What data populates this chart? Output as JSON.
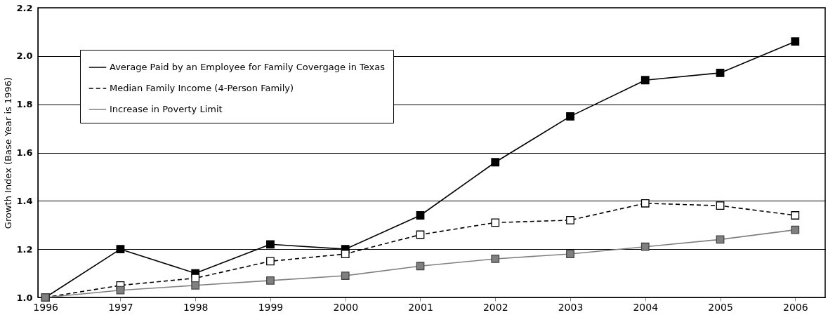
{
  "chart_data": {
    "type": "line",
    "ylabel": "Growth Index (Base Year is 1996)",
    "categories": [
      "1996",
      "1997",
      "1998",
      "1999",
      "2000",
      "2001",
      "2002",
      "2003",
      "2004",
      "2005",
      "2006"
    ],
    "series": [
      {
        "name": "Average Paid by an Employee for Family Covergage in Texas",
        "color": "#000000",
        "line_style": "solid",
        "values": [
          1.0,
          1.2,
          1.1,
          1.22,
          1.2,
          1.34,
          1.56,
          1.75,
          1.9,
          1.93,
          2.06
        ]
      },
      {
        "name": "Median Family Income (4-Person Family)",
        "color": "#000000",
        "line_style": "dashed",
        "values": [
          1.0,
          1.05,
          1.08,
          1.15,
          1.18,
          1.26,
          1.31,
          1.32,
          1.39,
          1.38,
          1.34
        ]
      },
      {
        "name": "Increase in Poverty Limit",
        "color": "#808080",
        "line_style": "solid",
        "values": [
          1.0,
          1.03,
          1.05,
          1.07,
          1.09,
          1.13,
          1.16,
          1.18,
          1.21,
          1.24,
          1.28
        ]
      }
    ],
    "ylim": [
      1.0,
      2.2
    ],
    "yticks": [
      {
        "value": 1.0,
        "label": "1.0"
      },
      {
        "value": 1.2,
        "label": "1.2"
      },
      {
        "value": 1.4,
        "label": "1.4"
      },
      {
        "value": 1.6,
        "label": "1.6"
      },
      {
        "value": 1.8,
        "label": "1.8"
      },
      {
        "value": 2.0,
        "label": "2.0"
      },
      {
        "value": 2.2,
        "label": "2.2"
      }
    ],
    "grid": "y",
    "legend": "top left",
    "marker": "square"
  }
}
